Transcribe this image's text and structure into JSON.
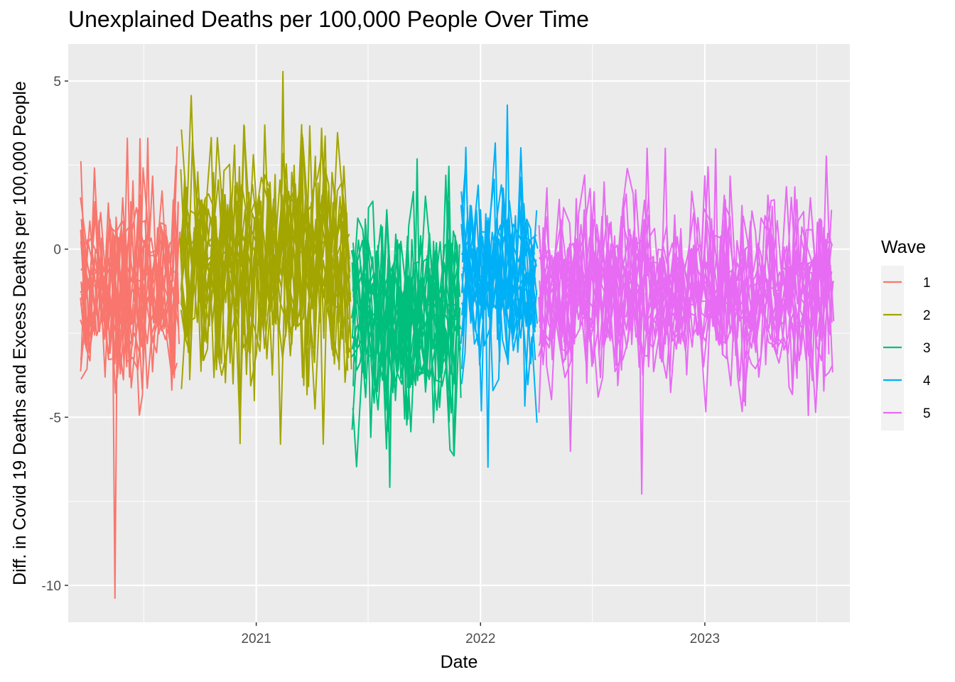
{
  "chart_data": {
    "type": "line",
    "title": "Unexplained Deaths per 100,000 People Over Time",
    "xlabel": "Date",
    "ylabel": "Diff. in Covid 19 Deaths and Excess Deaths per 100,000 People",
    "x_ticks": [
      "2021",
      "2022",
      "2023"
    ],
    "y_ticks": [
      5,
      0,
      -5,
      -10
    ],
    "y_tick_labels": [
      "5",
      "0",
      "-5",
      "-10"
    ],
    "xlim": [
      "2020-03-01",
      "2023-08-25"
    ],
    "ylim": [
      -11.1,
      6.1
    ],
    "grid": true,
    "legend": {
      "title": "Wave",
      "position": "right"
    },
    "series": [
      {
        "name": "1",
        "color": "#F8766D",
        "x_range": [
          "2020-03-20",
          "2020-08-30"
        ],
        "ymin": -10.4,
        "ymax": 3.3,
        "center": -1.2,
        "spread": 1.3
      },
      {
        "name": "2",
        "color": "#A3A500",
        "x_range": [
          "2020-08-30",
          "2021-06-05"
        ],
        "ymin": -5.8,
        "ymax": 5.3,
        "center": -0.3,
        "spread": 1.6
      },
      {
        "name": "3",
        "color": "#00BF7D",
        "x_range": [
          "2021-06-05",
          "2021-11-30"
        ],
        "ymin": -7.1,
        "ymax": 2.7,
        "center": -2.1,
        "spread": 1.4
      },
      {
        "name": "4",
        "color": "#00B0F6",
        "x_range": [
          "2021-11-30",
          "2022-04-05"
        ],
        "ymin": -6.5,
        "ymax": 4.3,
        "center": -0.8,
        "spread": 1.3
      },
      {
        "name": "5",
        "color": "#E76BF3",
        "x_range": [
          "2022-04-05",
          "2023-07-30"
        ],
        "ymin": -7.3,
        "ymax": 3.0,
        "center": -1.3,
        "spread": 1.2
      }
    ],
    "plot_colors": {
      "panel": "#EBEBEB",
      "grid": "#FFFFFF",
      "legend_key": "#F2F2F2"
    }
  }
}
